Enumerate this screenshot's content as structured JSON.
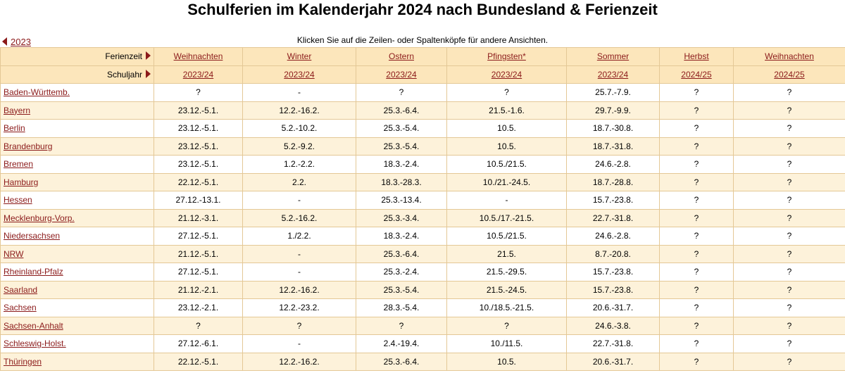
{
  "title": "Schulferien im Kalenderjahr 2024 nach Bundesland & Ferienzeit",
  "prev_link": "2023",
  "hint": "Klicken Sie auf die Zeilen- oder Spaltenköpfe für andere Ansichten.",
  "ferienzeit_label": "Ferienzeit",
  "schuljahr_label": "Schuljahr",
  "columns": [
    {
      "name": "Weihnachten",
      "year": "2023/24"
    },
    {
      "name": "Winter",
      "year": "2023/24"
    },
    {
      "name": "Ostern",
      "year": "2023/24"
    },
    {
      "name": "Pfingsten*",
      "year": "2023/24"
    },
    {
      "name": "Sommer",
      "year": "2023/24"
    },
    {
      "name": "Herbst",
      "year": "2024/25"
    },
    {
      "name": "Weihnachten",
      "year": "2024/25"
    }
  ],
  "rows": [
    {
      "state": "Baden-Württemb.",
      "cells": [
        "?",
        "-",
        "?",
        "?",
        "25.7.-7.9.",
        "?",
        "?"
      ]
    },
    {
      "state": "Bayern",
      "cells": [
        "23.12.-5.1.",
        "12.2.-16.2.",
        "25.3.-6.4.",
        "21.5.-1.6.",
        "29.7.-9.9.",
        "?",
        "?"
      ]
    },
    {
      "state": "Berlin",
      "cells": [
        "23.12.-5.1.",
        "5.2.-10.2.",
        "25.3.-5.4.",
        "10.5.",
        "18.7.-30.8.",
        "?",
        "?"
      ]
    },
    {
      "state": "Brandenburg",
      "cells": [
        "23.12.-5.1.",
        "5.2.-9.2.",
        "25.3.-5.4.",
        "10.5.",
        "18.7.-31.8.",
        "?",
        "?"
      ]
    },
    {
      "state": "Bremen",
      "cells": [
        "23.12.-5.1.",
        "1.2.-2.2.",
        "18.3.-2.4.",
        "10.5./21.5.",
        "24.6.-2.8.",
        "?",
        "?"
      ]
    },
    {
      "state": "Hamburg",
      "cells": [
        "22.12.-5.1.",
        "2.2.",
        "18.3.-28.3.",
        "10./21.-24.5.",
        "18.7.-28.8.",
        "?",
        "?"
      ]
    },
    {
      "state": "Hessen",
      "cells": [
        "27.12.-13.1.",
        "-",
        "25.3.-13.4.",
        "-",
        "15.7.-23.8.",
        "?",
        "?"
      ]
    },
    {
      "state": "Mecklenburg-Vorp.",
      "cells": [
        "21.12.-3.1.",
        "5.2.-16.2.",
        "25.3.-3.4.",
        "10.5./17.-21.5.",
        "22.7.-31.8.",
        "?",
        "?"
      ]
    },
    {
      "state": "Niedersachsen",
      "cells": [
        "27.12.-5.1.",
        "1./2.2.",
        "18.3.-2.4.",
        "10.5./21.5.",
        "24.6.-2.8.",
        "?",
        "?"
      ]
    },
    {
      "state": "NRW",
      "cells": [
        "21.12.-5.1.",
        "-",
        "25.3.-6.4.",
        "21.5.",
        "8.7.-20.8.",
        "?",
        "?"
      ]
    },
    {
      "state": "Rheinland-Pfalz",
      "cells": [
        "27.12.-5.1.",
        "-",
        "25.3.-2.4.",
        "21.5.-29.5.",
        "15.7.-23.8.",
        "?",
        "?"
      ]
    },
    {
      "state": "Saarland",
      "cells": [
        "21.12.-2.1.",
        "12.2.-16.2.",
        "25.3.-5.4.",
        "21.5.-24.5.",
        "15.7.-23.8.",
        "?",
        "?"
      ]
    },
    {
      "state": "Sachsen",
      "cells": [
        "23.12.-2.1.",
        "12.2.-23.2.",
        "28.3.-5.4.",
        "10./18.5.-21.5.",
        "20.6.-31.7.",
        "?",
        "?"
      ]
    },
    {
      "state": "Sachsen-Anhalt",
      "cells": [
        "?",
        "?",
        "?",
        "?",
        "24.6.-3.8.",
        "?",
        "?"
      ]
    },
    {
      "state": "Schleswig-Holst.",
      "cells": [
        "27.12.-6.1.",
        "-",
        "2.4.-19.4.",
        "10./11.5.",
        "22.7.-31.8.",
        "?",
        "?"
      ]
    },
    {
      "state": "Thüringen",
      "cells": [
        "22.12.-5.1.",
        "12.2.-16.2.",
        "25.3.-6.4.",
        "10.5.",
        "20.6.-31.7.",
        "?",
        "?"
      ]
    }
  ]
}
